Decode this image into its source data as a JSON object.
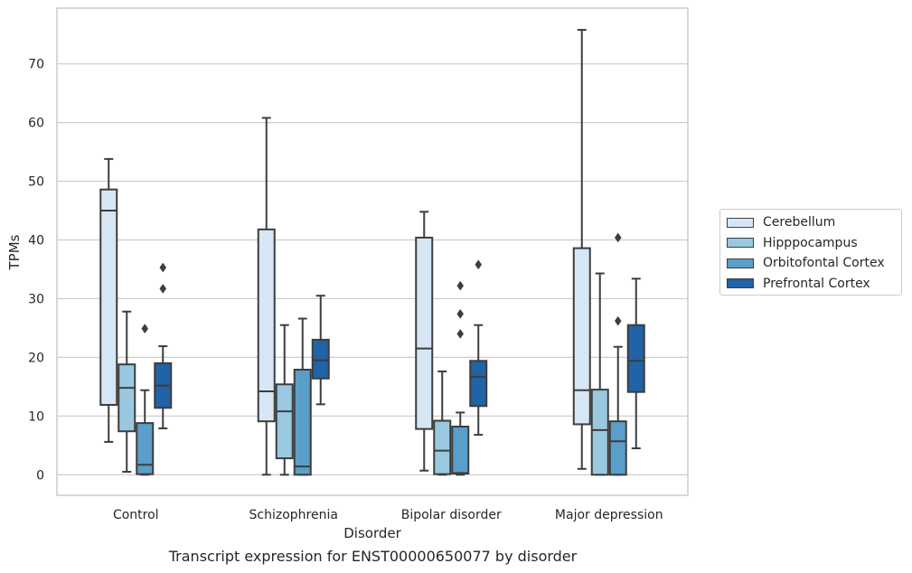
{
  "chart_data": {
    "type": "boxplot",
    "xlabel": "Disorder",
    "ylabel": "TPMs",
    "caption": "Transcript expression for ENST00000650077 by disorder",
    "ylim": [
      -3.5,
      79.5
    ],
    "yticks": [
      0,
      10,
      20,
      30,
      40,
      50,
      60,
      70
    ],
    "grid": true,
    "legend_position": "right",
    "categories": [
      "Control",
      "Schizophrenia",
      "Bipolar disorder",
      "Major depression"
    ],
    "series": [
      {
        "name": "Cerebellum",
        "color": "#d6e6f4",
        "boxes": [
          {
            "whisker_low": 5.6,
            "q1": 11.9,
            "median": 45.0,
            "q3": 48.6,
            "whisker_high": 53.8,
            "outliers": []
          },
          {
            "whisker_low": 0.0,
            "q1": 9.1,
            "median": 14.2,
            "q3": 41.8,
            "whisker_high": 60.8,
            "outliers": []
          },
          {
            "whisker_low": 0.7,
            "q1": 7.8,
            "median": 21.5,
            "q3": 40.4,
            "whisker_high": 44.8,
            "outliers": []
          },
          {
            "whisker_low": 1.0,
            "q1": 8.6,
            "median": 14.4,
            "q3": 38.6,
            "whisker_high": 75.8,
            "outliers": []
          }
        ]
      },
      {
        "name": "Hipppocampus",
        "color": "#9ac8e0",
        "boxes": [
          {
            "whisker_low": 0.5,
            "q1": 7.4,
            "median": 14.8,
            "q3": 18.8,
            "whisker_high": 27.8,
            "outliers": []
          },
          {
            "whisker_low": 0.0,
            "q1": 2.8,
            "median": 10.8,
            "q3": 15.4,
            "whisker_high": 25.5,
            "outliers": []
          },
          {
            "whisker_low": 0.0,
            "q1": 0.1,
            "median": 4.1,
            "q3": 9.2,
            "whisker_high": 17.6,
            "outliers": []
          },
          {
            "whisker_low": 0.0,
            "q1": 0.0,
            "median": 7.6,
            "q3": 14.5,
            "whisker_high": 34.3,
            "outliers": []
          }
        ]
      },
      {
        "name": "Orbitofontal Cortex",
        "color": "#5a9ec9",
        "boxes": [
          {
            "whisker_low": 0.0,
            "q1": 0.1,
            "median": 1.7,
            "q3": 8.8,
            "whisker_high": 14.4,
            "outliers": [
              24.9
            ]
          },
          {
            "whisker_low": 0.0,
            "q1": 0.0,
            "median": 1.4,
            "q3": 17.9,
            "whisker_high": 26.6,
            "outliers": []
          },
          {
            "whisker_low": 0.0,
            "q1": 0.2,
            "median": 0.3,
            "q3": 8.2,
            "whisker_high": 10.6,
            "outliers": [
              24.0,
              27.4,
              32.2
            ]
          },
          {
            "whisker_low": 0.0,
            "q1": 0.0,
            "median": 5.7,
            "q3": 9.1,
            "whisker_high": 21.8,
            "outliers": [
              26.2,
              40.4
            ]
          }
        ]
      },
      {
        "name": "Prefrontal Cortex",
        "color": "#2262a6",
        "boxes": [
          {
            "whisker_low": 7.9,
            "q1": 11.4,
            "median": 15.2,
            "q3": 19.0,
            "whisker_high": 21.9,
            "outliers": [
              31.7,
              35.3
            ]
          },
          {
            "whisker_low": 12.0,
            "q1": 16.4,
            "median": 19.5,
            "q3": 23.0,
            "whisker_high": 30.5,
            "outliers": []
          },
          {
            "whisker_low": 6.8,
            "q1": 11.7,
            "median": 16.7,
            "q3": 19.4,
            "whisker_high": 25.5,
            "outliers": [
              35.8
            ]
          },
          {
            "whisker_low": 4.5,
            "q1": 14.1,
            "median": 19.4,
            "q3": 25.5,
            "whisker_high": 33.4,
            "outliers": []
          }
        ]
      }
    ]
  }
}
